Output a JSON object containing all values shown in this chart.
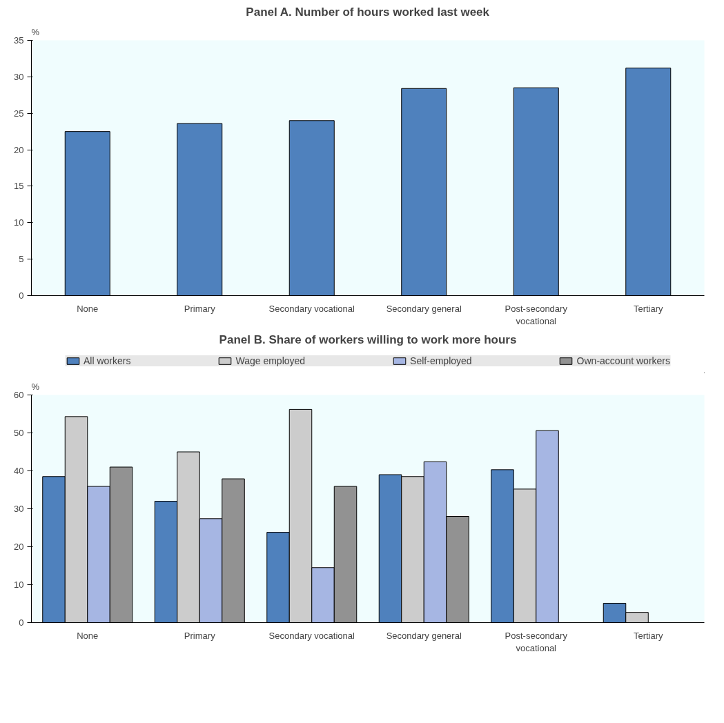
{
  "chart_data": [
    {
      "type": "bar",
      "title": "Panel A. Number of hours worked last week",
      "ylabel": "%",
      "categories": [
        "None",
        "Primary",
        "Secondary vocational",
        "Secondary general",
        "Post-secondary vocational",
        "Tertiary"
      ],
      "series": [
        {
          "color": "#4f81bd",
          "values": [
            22.5,
            23.6,
            24.0,
            28.4,
            28.5,
            31.2
          ]
        }
      ],
      "ylim": [
        0,
        35
      ],
      "yticks": [
        0,
        5,
        10,
        15,
        20,
        25,
        30,
        35
      ],
      "grid": false,
      "legend": false
    },
    {
      "type": "bar",
      "title": "Panel B. Share of workers willing to work more hours",
      "ylabel": "%",
      "categories": [
        "None",
        "Primary",
        "Secondary vocational",
        "Secondary general",
        "Post-secondary vocational",
        "Tertiary"
      ],
      "series": [
        {
          "name": "All workers",
          "color": "#4f81bd",
          "values": [
            38.5,
            32.0,
            23.8,
            39.0,
            40.3,
            5.1
          ]
        },
        {
          "name": "Wage employed",
          "color": "#cccccc",
          "values": [
            54.3,
            45.0,
            56.2,
            38.5,
            35.2,
            2.7
          ]
        },
        {
          "name": "Self-employed",
          "color": "#a6b6e3",
          "values": [
            35.9,
            27.4,
            14.5,
            42.4,
            50.6,
            null
          ]
        },
        {
          "name": "Own-account workers",
          "color": "#929292",
          "values": [
            41.0,
            37.9,
            35.9,
            28.0,
            null,
            null
          ]
        }
      ],
      "ylim": [
        0,
        60
      ],
      "yticks": [
        0,
        10,
        20,
        30,
        40,
        50,
        60
      ],
      "grid": false,
      "legend": "top"
    }
  ]
}
